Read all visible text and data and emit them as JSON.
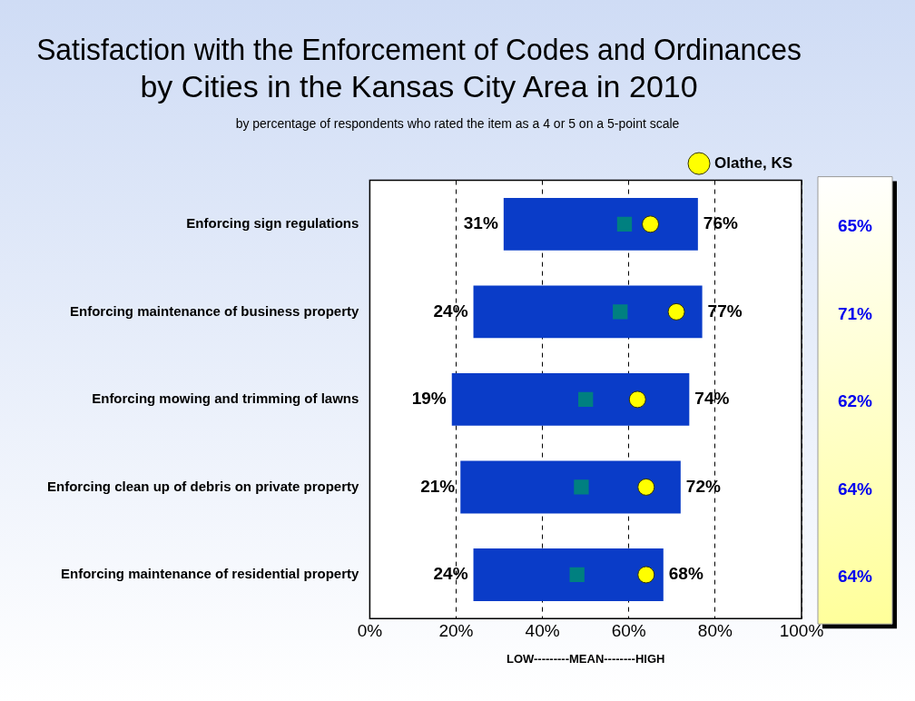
{
  "chart_data": {
    "type": "bar",
    "orientation": "horizontal",
    "title": "Satisfaction with the Enforcement of Codes and Ordinances by Cities in the Kansas City Area in 2010",
    "subtitle": "by percentage of respondents who rated the item as a 4 or 5 on a 5-point scale",
    "xlabel": "LOW---------MEAN--------HIGH",
    "categories": [
      "Enforcing sign regulations",
      "Enforcing maintenance of business property",
      "Enforcing mowing and trimming of lawns",
      "Enforcing clean up of debris on private property",
      "Enforcing maintenance of residential property"
    ],
    "series": [
      {
        "type": "bar",
        "color": "#0a3cc8",
        "base": [
          31,
          24,
          19,
          21,
          24
        ],
        "values": [
          45,
          53,
          55,
          51,
          44
        ]
      },
      {
        "type": "scatter",
        "marker": "square",
        "color": "#008080",
        "values": [
          59,
          58,
          50,
          49,
          48
        ]
      },
      {
        "type": "scatter",
        "marker": "circle",
        "name": "Olathe, KS",
        "color": "#ffff00",
        "values": [
          65,
          71,
          62,
          64,
          64
        ],
        "value_labels": [
          "65%",
          "71%",
          "62%",
          "64%",
          "64%"
        ]
      }
    ],
    "annotations": [
      {
        "text": "31%",
        "x": 31,
        "y": "Enforcing sign regulations"
      },
      {
        "text": "76%",
        "x": 76,
        "y": "Enforcing sign regulations"
      },
      {
        "text": "24%",
        "x": 24,
        "y": "Enforcing maintenance of business property"
      },
      {
        "text": "77%",
        "x": 77,
        "y": "Enforcing maintenance of business property"
      },
      {
        "text": "19%",
        "x": 19,
        "y": "Enforcing mowing and trimming of lawns"
      },
      {
        "text": "74%",
        "x": 74,
        "y": "Enforcing mowing and trimming of lawns"
      },
      {
        "text": "21%",
        "x": 21,
        "y": "Enforcing clean up of debris on private property"
      },
      {
        "text": "72%",
        "x": 72,
        "y": "Enforcing clean up of debris on private property"
      },
      {
        "text": "24%",
        "x": 24,
        "y": "Enforcing maintenance of residential property"
      },
      {
        "text": "68%",
        "x": 68,
        "y": "Enforcing maintenance of residential property"
      }
    ],
    "xlim": [
      0,
      100
    ],
    "xticks": [
      {
        "value": 0,
        "label": "0%"
      },
      {
        "value": 20,
        "label": "20%"
      },
      {
        "value": 40,
        "label": "40%"
      },
      {
        "value": 60,
        "label": "60%"
      },
      {
        "value": 80,
        "label": "80%"
      },
      {
        "value": 100,
        "label": "100%"
      }
    ],
    "grid": "x",
    "legend": "top right"
  }
}
